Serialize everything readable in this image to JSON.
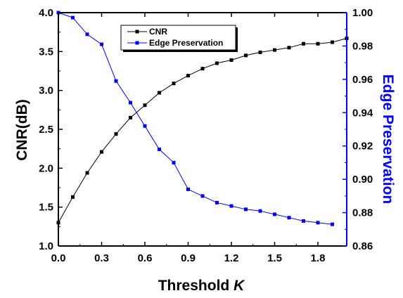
{
  "chart_data": {
    "type": "line",
    "title": "",
    "xlabel_prefix": "Threshold ",
    "xlabel_var": "K",
    "ylabel_left": "CNR(dB)",
    "ylabel_right": "Edge Preservation",
    "xlim": [
      0.0,
      2.0
    ],
    "ylim_left": [
      1.0,
      4.0
    ],
    "ylim_right": [
      0.86,
      1.0
    ],
    "x_ticks": [
      0.0,
      0.3,
      0.6,
      0.9,
      1.2,
      1.5,
      1.8
    ],
    "x_tick_labels": [
      "0.0",
      "0.3",
      "0.6",
      "0.9",
      "1.2",
      "1.5",
      "1.8"
    ],
    "y_left_ticks": [
      1.0,
      1.5,
      2.0,
      2.5,
      3.0,
      3.5,
      4.0
    ],
    "y_left_tick_labels": [
      "1.0",
      "1.5",
      "2.0",
      "2.5",
      "3.0",
      "3.5",
      "4.0"
    ],
    "y_right_ticks": [
      0.86,
      0.88,
      0.9,
      0.92,
      0.94,
      0.96,
      0.98,
      1.0
    ],
    "y_right_tick_labels": [
      "0.86",
      "0.88",
      "0.90",
      "0.92",
      "0.94",
      "0.96",
      "0.98",
      "1.00"
    ],
    "grid": false,
    "legend_position": "top-left",
    "series": [
      {
        "name": "CNR",
        "axis": "left",
        "color": "#000000",
        "x": [
          0.0,
          0.1,
          0.2,
          0.3,
          0.4,
          0.5,
          0.6,
          0.7,
          0.8,
          0.9,
          1.0,
          1.1,
          1.2,
          1.3,
          1.4,
          1.5,
          1.6,
          1.7,
          1.8,
          1.9,
          2.0
        ],
        "values": [
          1.3,
          1.63,
          1.94,
          2.21,
          2.44,
          2.65,
          2.81,
          2.97,
          3.09,
          3.19,
          3.28,
          3.35,
          3.39,
          3.45,
          3.49,
          3.52,
          3.55,
          3.6,
          3.6,
          3.62,
          3.67
        ]
      },
      {
        "name": "Edge Preservation",
        "axis": "right",
        "color": "#0000ff",
        "x": [
          0.0,
          0.1,
          0.2,
          0.3,
          0.4,
          0.5,
          0.6,
          0.7,
          0.8,
          0.9,
          1.0,
          1.1,
          1.2,
          1.3,
          1.4,
          1.5,
          1.6,
          1.7,
          1.8,
          1.9
        ],
        "values": [
          1.0,
          0.997,
          0.987,
          0.981,
          0.959,
          0.946,
          0.932,
          0.918,
          0.91,
          0.894,
          0.89,
          0.886,
          0.884,
          0.882,
          0.881,
          0.879,
          0.877,
          0.875,
          0.874,
          0.873
        ]
      }
    ]
  }
}
